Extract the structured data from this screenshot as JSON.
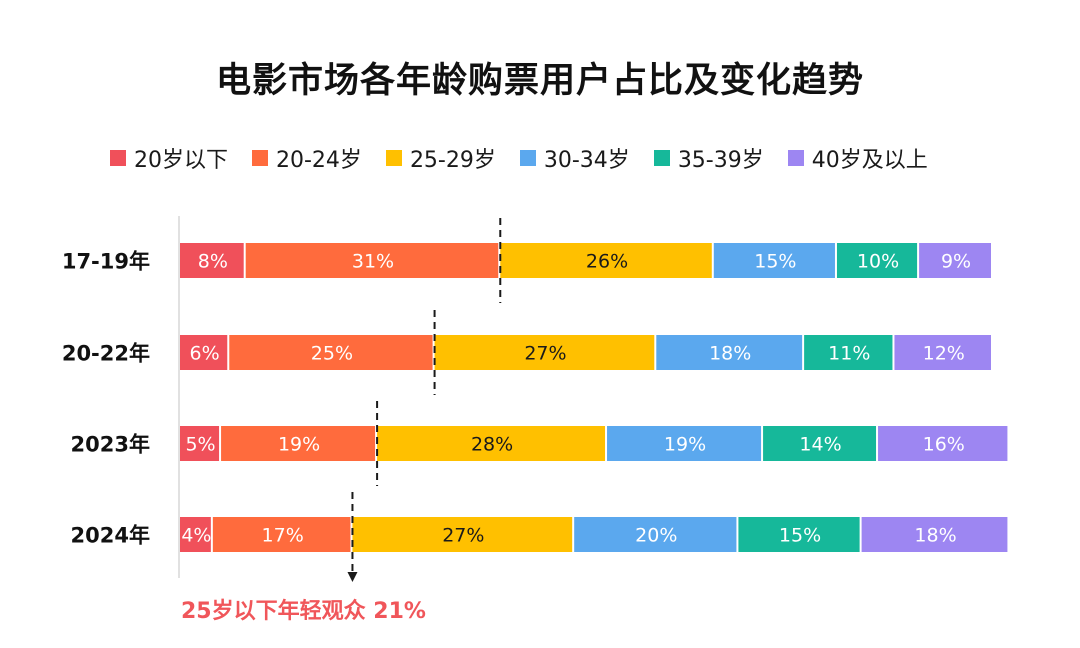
{
  "chart_data": {
    "type": "bar",
    "orientation": "horizontal",
    "stacked": true,
    "title": "电影市场各年龄购票用户占比及变化趋势",
    "categories": [
      "17-19年",
      "20-22年",
      "2023年",
      "2024年"
    ],
    "series": [
      {
        "name": "20岁以下",
        "color": "#f0505a",
        "values": [
          8,
          6,
          5,
          4
        ]
      },
      {
        "name": "20-24岁",
        "color": "#ff6b3d",
        "values": [
          31,
          25,
          19,
          17
        ]
      },
      {
        "name": "25-29岁",
        "color": "#ffc000",
        "values": [
          26,
          27,
          28,
          27
        ]
      },
      {
        "name": "30-34岁",
        "color": "#5ba8ee",
        "values": [
          15,
          18,
          19,
          20
        ]
      },
      {
        "name": "35-39岁",
        "color": "#16b89a",
        "values": [
          10,
          11,
          14,
          15
        ]
      },
      {
        "name": "40岁及以上",
        "color": "#9d86f2",
        "values": [
          9,
          12,
          16,
          18
        ]
      }
    ],
    "value_labels": [
      [
        "8%",
        "31%",
        "26%",
        "15%",
        "10%",
        "9%"
      ],
      [
        "6%",
        "25%",
        "27%",
        "18%",
        "11%",
        "12%"
      ],
      [
        "5%",
        "19%",
        "28%",
        "19%",
        "14%",
        "16%"
      ],
      [
        "4%",
        "17%",
        "27%",
        "20%",
        "15%",
        "18%"
      ]
    ],
    "label_colors": [
      "#ffffff",
      "#ffffff",
      "#1a1a1a",
      "#ffffff",
      "#ffffff",
      "#ffffff"
    ],
    "xlim": [
      0,
      99
    ],
    "legend_position": "top",
    "grid": false,
    "annotation": {
      "text": "25岁以下年轻观众 21%",
      "color": "#f0565a",
      "markers_at_cumulative": [
        39,
        31,
        24,
        21
      ]
    }
  }
}
